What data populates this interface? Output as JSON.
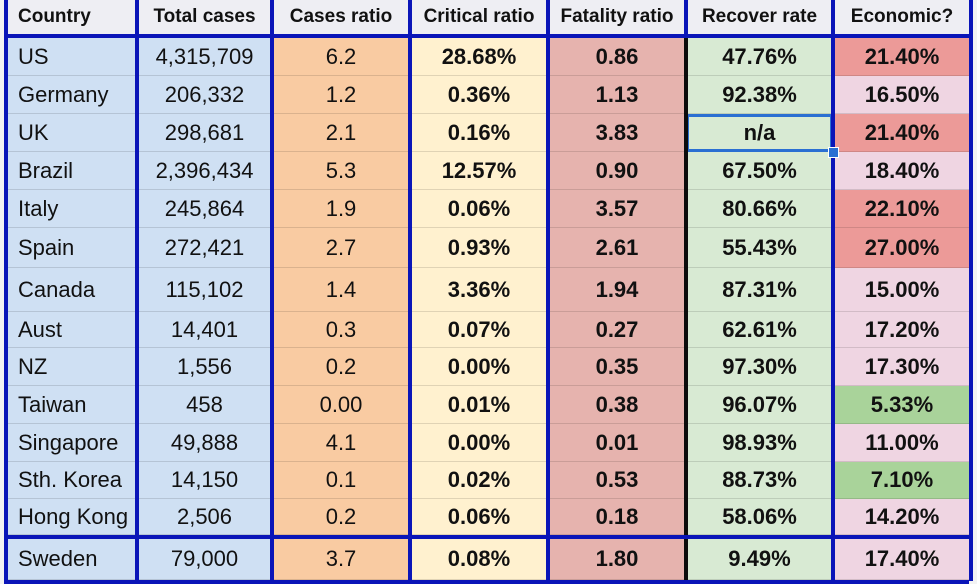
{
  "table": {
    "columns": [
      "Country",
      "Total cases",
      "Cases ratio",
      "Critical ratio",
      "Fatality ratio",
      "Recover rate",
      "Economic?"
    ],
    "rows": [
      {
        "country": "US",
        "total": "4,315,709",
        "cases_ratio": "6.2",
        "critical": "28.68%",
        "fatality": "0.86",
        "recover": "47.76%",
        "economic": "21.40%",
        "econ_level": "high"
      },
      {
        "country": "Germany",
        "total": "206,332",
        "cases_ratio": "1.2",
        "critical": "0.36%",
        "fatality": "1.13",
        "recover": "92.38%",
        "economic": "16.50%",
        "econ_level": "mid"
      },
      {
        "country": "UK",
        "total": "298,681",
        "cases_ratio": "2.1",
        "critical": "0.16%",
        "fatality": "3.83",
        "recover": "n/a",
        "economic": "21.40%",
        "econ_level": "high"
      },
      {
        "country": "Brazil",
        "total": "2,396,434",
        "cases_ratio": "5.3",
        "critical": "12.57%",
        "fatality": "0.90",
        "recover": "67.50%",
        "economic": "18.40%",
        "econ_level": "mid"
      },
      {
        "country": "Italy",
        "total": "245,864",
        "cases_ratio": "1.9",
        "critical": "0.06%",
        "fatality": "3.57",
        "recover": "80.66%",
        "economic": "22.10%",
        "econ_level": "high"
      },
      {
        "country": "Spain",
        "total": "272,421",
        "cases_ratio": "2.7",
        "critical": "0.93%",
        "fatality": "2.61",
        "recover": "55.43%",
        "economic": "27.00%",
        "econ_level": "high"
      },
      {
        "country": "Canada",
        "total": "115,102",
        "cases_ratio": "1.4",
        "critical": "3.36%",
        "fatality": "1.94",
        "recover": "87.31%",
        "economic": "15.00%",
        "econ_level": "mid"
      },
      {
        "country": "Aust",
        "total": "14,401",
        "cases_ratio": "0.3",
        "critical": "0.07%",
        "fatality": "0.27",
        "recover": "62.61%",
        "economic": "17.20%",
        "econ_level": "mid"
      },
      {
        "country": "NZ",
        "total": "1,556",
        "cases_ratio": "0.2",
        "critical": "0.00%",
        "fatality": "0.35",
        "recover": "97.30%",
        "economic": "17.30%",
        "econ_level": "mid"
      },
      {
        "country": "Taiwan",
        "total": "458",
        "cases_ratio": "0.00",
        "critical": "0.01%",
        "fatality": "0.38",
        "recover": "96.07%",
        "economic": "5.33%",
        "econ_level": "low"
      },
      {
        "country": "Singapore",
        "total": "49,888",
        "cases_ratio": "4.1",
        "critical": "0.00%",
        "fatality": "0.01",
        "recover": "98.93%",
        "economic": "11.00%",
        "econ_level": "mid"
      },
      {
        "country": "Sth. Korea",
        "total": "14,150",
        "cases_ratio": "0.1",
        "critical": "0.02%",
        "fatality": "0.53",
        "recover": "88.73%",
        "economic": "7.10%",
        "econ_level": "low"
      },
      {
        "country": "Hong Kong",
        "total": "2,506",
        "cases_ratio": "0.2",
        "critical": "0.06%",
        "fatality": "0.18",
        "recover": "58.06%",
        "economic": "14.20%",
        "econ_level": "mid"
      },
      {
        "country": "Sweden",
        "total": "79,000",
        "cases_ratio": "3.7",
        "critical": "0.08%",
        "fatality": "1.80",
        "recover": "9.49%",
        "economic": "17.40%",
        "econ_level": "mid"
      }
    ],
    "selected_cell": {
      "row": 2,
      "column": "Recover rate"
    }
  },
  "colors": {
    "border_blue": "#0a15b8",
    "selection_blue": "#2a6fd2",
    "country_bg": "#cfe0f3",
    "cases_ratio_bg": "#f9cba2",
    "critical_bg": "#fff1cf",
    "fatality_bg": "#e6b3ae",
    "recover_bg": "#d8ead3",
    "econ_high": "#ec9a98",
    "econ_mid": "#efd5e2",
    "econ_low": "#a9d39a"
  }
}
